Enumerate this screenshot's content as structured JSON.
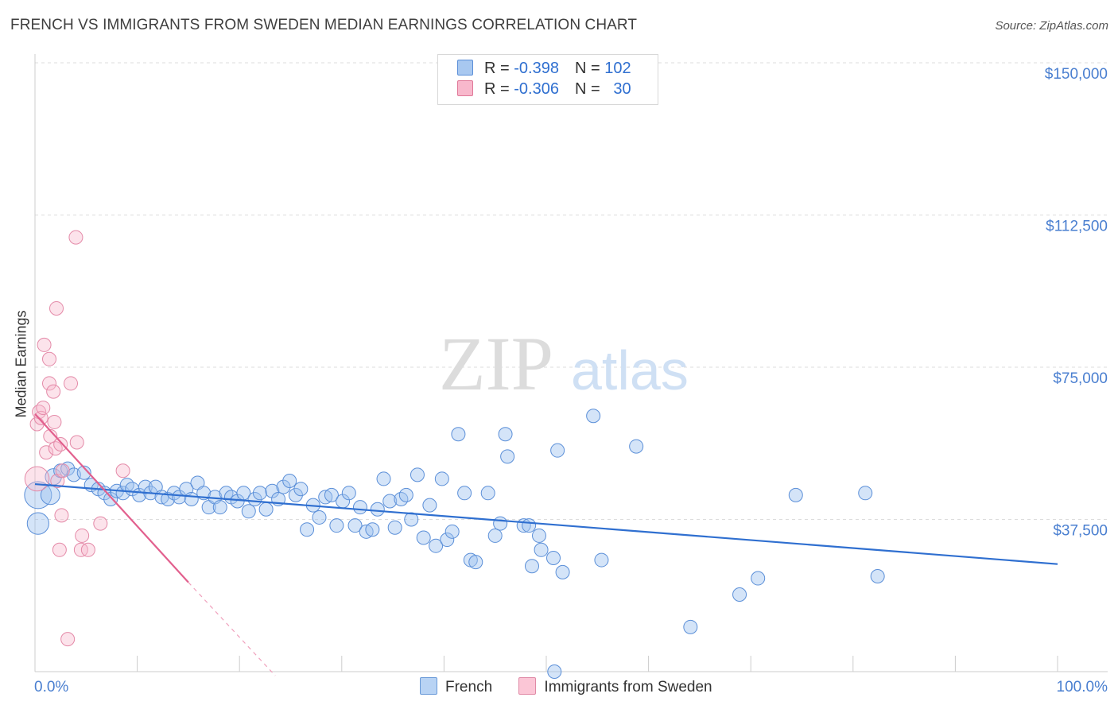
{
  "title": "FRENCH VS IMMIGRANTS FROM SWEDEN MEDIAN EARNINGS CORRELATION CHART",
  "source": "Source: ZipAtlas.com",
  "watermark": {
    "zip": "ZIP",
    "atlas": "atlas"
  },
  "legend": {
    "r_label": "R =",
    "n_label": "N =",
    "rows": [
      {
        "r": "-0.398",
        "n": "102",
        "color": "#a8c8f0",
        "border": "#5b8fd8"
      },
      {
        "r": "-0.306",
        "n": "30",
        "color": "#f8b8cc",
        "border": "#e07898"
      }
    ]
  },
  "bottom_legend": [
    {
      "label": "French",
      "color": "#b8d3f4",
      "border": "#6a9ad8"
    },
    {
      "label": "Immigrants from Sweden",
      "color": "#fbc6d6",
      "border": "#e08aa6"
    }
  ],
  "chart_data": {
    "type": "scatter",
    "title": "FRENCH VS IMMIGRANTS FROM SWEDEN MEDIAN EARNINGS CORRELATION CHART",
    "xlabel": "",
    "ylabel": "Median Earnings",
    "xlim": [
      0,
      100
    ],
    "ylim": [
      0,
      150000
    ],
    "x_tick_labels": {
      "min": "0.0%",
      "max": "100.0%"
    },
    "y_ticks": [
      {
        "value": 150000,
        "label": "$150,000"
      },
      {
        "value": 112500,
        "label": "$112,500"
      },
      {
        "value": 75000,
        "label": "$75,000"
      },
      {
        "value": 37500,
        "label": "$37,500"
      }
    ],
    "series": [
      {
        "name": "French",
        "color": "#4a86d8",
        "trend": {
          "x0": 0,
          "y0": 46200,
          "x1": 100,
          "y1": 26500
        },
        "points": [
          [
            0.3,
            43500,
            2.0
          ],
          [
            0.3,
            36500,
            1.6
          ],
          [
            1.5,
            43500,
            1.4
          ],
          [
            1.8,
            48000,
            1.2
          ],
          [
            2.5,
            49500,
            1.0
          ],
          [
            3.2,
            50000,
            1.0
          ],
          [
            3.8,
            48500,
            1.0
          ],
          [
            4.8,
            49000,
            1.0
          ],
          [
            5.5,
            46000,
            1.0
          ],
          [
            6.2,
            45000,
            1.0
          ],
          [
            6.8,
            44000,
            1.0
          ],
          [
            7.4,
            42500,
            1.0
          ],
          [
            8.0,
            44500,
            1.0
          ],
          [
            8.6,
            44000,
            1.0
          ],
          [
            9.0,
            46000,
            1.0
          ],
          [
            9.5,
            45000,
            1.0
          ],
          [
            10.2,
            43500,
            1.0
          ],
          [
            10.8,
            45500,
            1.0
          ],
          [
            11.3,
            44000,
            1.0
          ],
          [
            11.8,
            45500,
            1.0
          ],
          [
            12.4,
            43000,
            1.0
          ],
          [
            13.0,
            42500,
            1.0
          ],
          [
            13.6,
            44000,
            1.0
          ],
          [
            14.1,
            43000,
            1.0
          ],
          [
            14.8,
            45000,
            1.0
          ],
          [
            15.3,
            42500,
            1.0
          ],
          [
            15.9,
            46500,
            1.0
          ],
          [
            16.5,
            44000,
            1.0
          ],
          [
            17.0,
            40500,
            1.0
          ],
          [
            17.6,
            43000,
            1.0
          ],
          [
            18.1,
            40500,
            1.0
          ],
          [
            18.7,
            44000,
            1.0
          ],
          [
            19.2,
            43000,
            1.0
          ],
          [
            19.8,
            42000,
            1.0
          ],
          [
            20.4,
            44000,
            1.0
          ],
          [
            20.9,
            39500,
            1.0
          ],
          [
            21.5,
            42500,
            1.0
          ],
          [
            22.0,
            44000,
            1.0
          ],
          [
            22.6,
            40000,
            1.0
          ],
          [
            23.2,
            44500,
            1.0
          ],
          [
            23.8,
            42500,
            1.0
          ],
          [
            24.3,
            45500,
            1.0
          ],
          [
            24.9,
            47000,
            1.0
          ],
          [
            25.5,
            43500,
            1.0
          ],
          [
            26.0,
            45000,
            1.0
          ],
          [
            26.6,
            35000,
            1.0
          ],
          [
            27.2,
            41000,
            1.0
          ],
          [
            27.8,
            38000,
            1.0
          ],
          [
            28.4,
            43000,
            1.0
          ],
          [
            29.0,
            43500,
            1.0
          ],
          [
            29.5,
            36000,
            1.0
          ],
          [
            30.1,
            42000,
            1.0
          ],
          [
            30.7,
            44000,
            1.0
          ],
          [
            31.3,
            36000,
            1.0
          ],
          [
            31.8,
            40500,
            1.0
          ],
          [
            32.4,
            34500,
            1.0
          ],
          [
            33.0,
            35000,
            1.0
          ],
          [
            33.5,
            40000,
            1.0
          ],
          [
            34.1,
            47500,
            1.0
          ],
          [
            34.7,
            42000,
            1.0
          ],
          [
            35.2,
            35500,
            1.0
          ],
          [
            35.8,
            42500,
            1.0
          ],
          [
            36.3,
            43500,
            1.0
          ],
          [
            36.8,
            37500,
            1.0
          ],
          [
            37.4,
            48500,
            1.0
          ],
          [
            38.0,
            33000,
            1.0
          ],
          [
            38.6,
            41000,
            1.0
          ],
          [
            39.2,
            31000,
            1.0
          ],
          [
            39.8,
            47500,
            1.0
          ],
          [
            40.3,
            32500,
            1.0
          ],
          [
            40.8,
            34500,
            1.0
          ],
          [
            41.4,
            58500,
            1.0
          ],
          [
            42.0,
            44000,
            1.0
          ],
          [
            42.6,
            27500,
            1.0
          ],
          [
            43.1,
            27000,
            1.0
          ],
          [
            44.3,
            44000,
            1.0
          ],
          [
            45.0,
            33500,
            1.0
          ],
          [
            45.5,
            36500,
            1.0
          ],
          [
            46.0,
            58500,
            1.0
          ],
          [
            46.2,
            53000,
            1.0
          ],
          [
            47.8,
            36000,
            1.0
          ],
          [
            48.3,
            36000,
            1.0
          ],
          [
            48.6,
            26000,
            1.0
          ],
          [
            49.3,
            33500,
            1.0
          ],
          [
            49.5,
            30000,
            1.0
          ],
          [
            50.7,
            28000,
            1.0
          ],
          [
            50.8,
            0,
            1.0
          ],
          [
            51.1,
            54500,
            1.0
          ],
          [
            51.6,
            24500,
            1.0
          ],
          [
            54.6,
            63000,
            1.0
          ],
          [
            55.4,
            27500,
            1.0
          ],
          [
            58.8,
            55500,
            1.0
          ],
          [
            64.1,
            11000,
            1.0
          ],
          [
            68.9,
            19000,
            1.0
          ],
          [
            70.7,
            23000,
            1.0
          ],
          [
            74.4,
            43500,
            1.0
          ],
          [
            81.2,
            44000,
            1.0
          ],
          [
            82.4,
            23500,
            1.0
          ]
        ]
      },
      {
        "name": "Immigrants from Sweden",
        "color": "#e06090",
        "trend": {
          "x0": 0,
          "y0": 63500,
          "x1": 15,
          "y1": 22000
        },
        "trend_dashed": {
          "x0": 15,
          "y0": 22000,
          "x1": 23.5,
          "y1": -1000
        },
        "points": [
          [
            0.2,
            47500,
            1.8
          ],
          [
            0.2,
            61000,
            1.0
          ],
          [
            0.4,
            64000,
            1.0
          ],
          [
            0.6,
            62500,
            1.0
          ],
          [
            0.8,
            65000,
            1.0
          ],
          [
            0.9,
            80500,
            1.0
          ],
          [
            1.1,
            54000,
            1.0
          ],
          [
            1.4,
            77000,
            1.0
          ],
          [
            1.4,
            71000,
            1.0
          ],
          [
            1.5,
            58000,
            1.0
          ],
          [
            1.8,
            69000,
            1.0
          ],
          [
            1.9,
            61500,
            1.0
          ],
          [
            2.0,
            55000,
            1.0
          ],
          [
            2.1,
            89500,
            1.0
          ],
          [
            2.2,
            47000,
            1.0
          ],
          [
            2.4,
            30000,
            1.0
          ],
          [
            2.5,
            56000,
            1.0
          ],
          [
            2.6,
            38500,
            1.0
          ],
          [
            2.7,
            49500,
            1.0
          ],
          [
            3.2,
            8000,
            1.0
          ],
          [
            3.5,
            71000,
            1.0
          ],
          [
            4.0,
            107000,
            1.0
          ],
          [
            4.1,
            56500,
            1.0
          ],
          [
            4.5,
            30000,
            1.0
          ],
          [
            4.6,
            33500,
            1.0
          ],
          [
            5.2,
            30000,
            1.0
          ],
          [
            6.4,
            36500,
            1.0
          ],
          [
            8.6,
            49500,
            1.0
          ]
        ]
      }
    ]
  }
}
